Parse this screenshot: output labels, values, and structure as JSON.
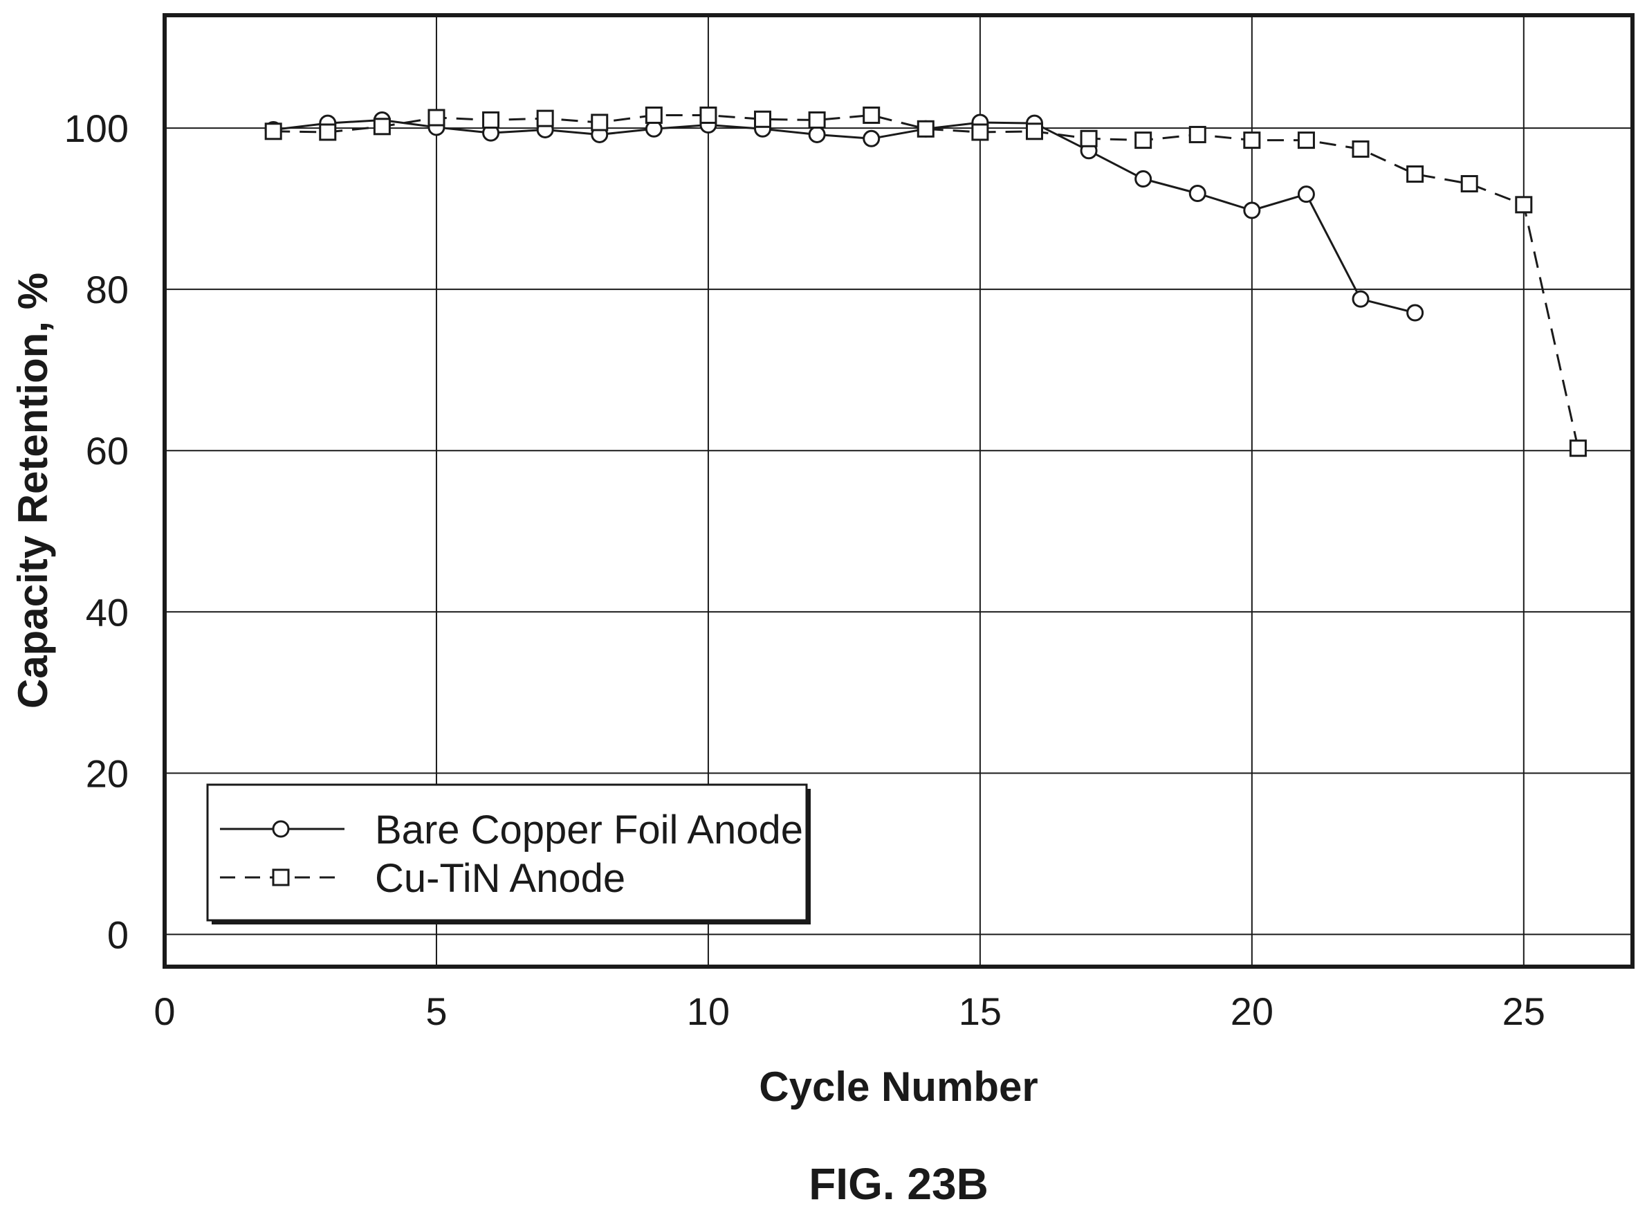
{
  "chart_data": {
    "type": "line",
    "xlabel": "Cycle Number",
    "ylabel": "Capacity Retention, %",
    "xlim": [
      0,
      27
    ],
    "ylim": [
      -4,
      114
    ],
    "xticks": [
      0,
      5,
      10,
      15,
      20,
      25
    ],
    "yticks": [
      0,
      20,
      40,
      60,
      80,
      100
    ],
    "grid": true,
    "legend_position": "bottom-left",
    "series": [
      {
        "name": "Bare Copper Foil Anode",
        "marker": "circle",
        "line_style": "solid",
        "x": [
          2,
          3,
          4,
          5,
          6,
          7,
          8,
          9,
          10,
          11,
          12,
          13,
          14,
          15,
          16,
          17,
          18,
          19,
          20,
          21,
          22,
          23
        ],
        "y": [
          99.8,
          100.6,
          101.0,
          100.1,
          99.4,
          99.8,
          99.2,
          99.9,
          100.4,
          99.9,
          99.2,
          98.7,
          99.9,
          100.7,
          100.6,
          97.2,
          93.7,
          91.9,
          89.8,
          91.8,
          78.8,
          77.1
        ]
      },
      {
        "name": "Cu-TiN Anode",
        "marker": "square",
        "line_style": "dashed",
        "x": [
          2,
          3,
          4,
          5,
          6,
          7,
          8,
          9,
          10,
          11,
          12,
          13,
          14,
          15,
          16,
          17,
          18,
          19,
          20,
          21,
          22,
          23,
          24,
          25,
          26
        ],
        "y": [
          99.6,
          99.5,
          100.2,
          101.3,
          101.0,
          101.2,
          100.7,
          101.6,
          101.6,
          101.1,
          101.0,
          101.6,
          99.9,
          99.5,
          99.6,
          98.7,
          98.5,
          99.2,
          98.5,
          98.5,
          97.4,
          94.3,
          93.1,
          90.5,
          60.3
        ]
      }
    ]
  },
  "figure": {
    "caption": "FIG. 23B"
  }
}
